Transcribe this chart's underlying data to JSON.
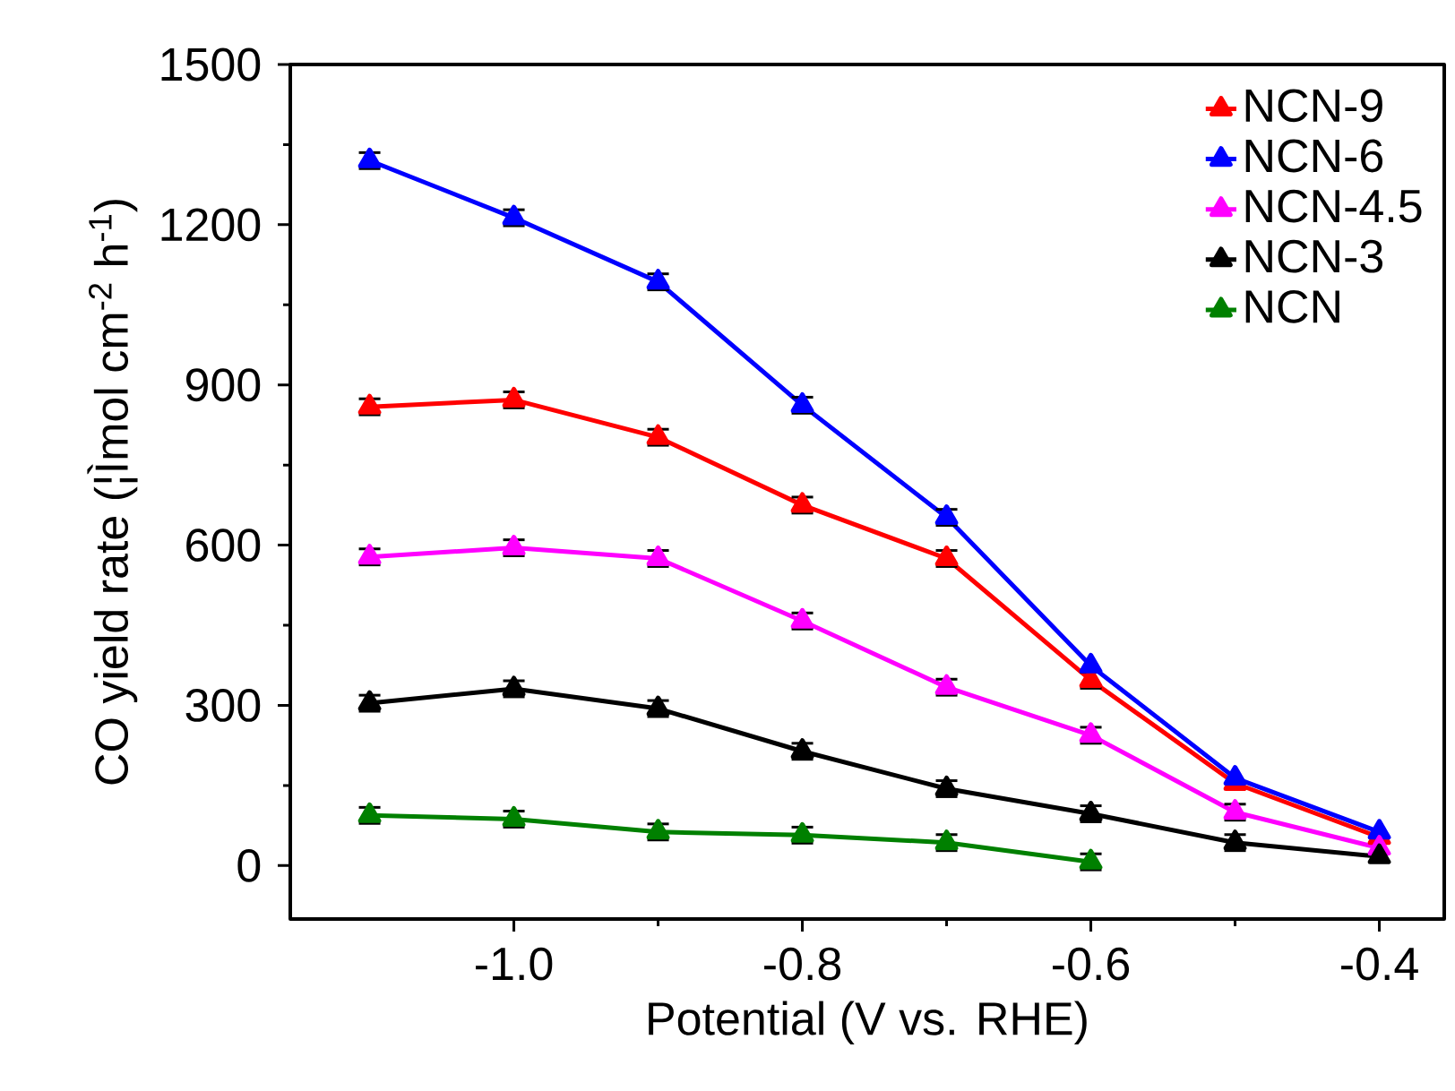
{
  "chart_data": {
    "type": "line",
    "xlabel": "Potential (V vs. RHE)",
    "ylabel": "CO yield rate (¦Ìmol cm$^{-2}$ h$^{-1}$)",
    "x": [
      -1.1,
      -1.0,
      -0.9,
      -0.8,
      -0.7,
      -0.6,
      -0.5,
      -0.4
    ],
    "series": [
      {
        "name": "NCN-9",
        "color": "#ff0000",
        "values": [
          859,
          872,
          802,
          675,
          575,
          347,
          154,
          53
        ],
        "errors": [
          15,
          15,
          15,
          15,
          15,
          15,
          null,
          null
        ]
      },
      {
        "name": "NCN-6",
        "color": "#0000ff",
        "values": [
          1320,
          1213,
          1093,
          862,
          652,
          374,
          164,
          63
        ],
        "errors": [
          15,
          15,
          15,
          15,
          15,
          null,
          null,
          null
        ]
      },
      {
        "name": "NCN-4.5",
        "color": "#ff00ff",
        "values": [
          578,
          595,
          575,
          458,
          334,
          244,
          100,
          33
        ],
        "errors": [
          15,
          15,
          15,
          15,
          15,
          15,
          15,
          null
        ]
      },
      {
        "name": "NCN-3",
        "color": "#000000",
        "values": [
          304,
          331,
          294,
          214,
          144,
          97,
          43,
          17
        ],
        "errors": [
          15,
          15,
          15,
          15,
          15,
          15,
          15,
          null
        ]
      },
      {
        "name": "NCN",
        "color": "#008000",
        "values": [
          94,
          87,
          63,
          57,
          43,
          7,
          null,
          null
        ],
        "errors": [
          15,
          15,
          15,
          15,
          15,
          15,
          null,
          null
        ]
      }
    ],
    "xlim": [
      -1.155,
      -0.355
    ],
    "ylim": [
      -100,
      1500
    ],
    "xticks": [
      {
        "value": -1.0,
        "label": "-1.0"
      },
      {
        "value": -0.8,
        "label": "-0.8"
      },
      {
        "value": -0.6,
        "label": "-0.6"
      },
      {
        "value": -0.4,
        "label": "-0.4"
      }
    ],
    "yticks": [
      0,
      300,
      600,
      900,
      1200,
      1500
    ],
    "grid": false,
    "legend": "top right",
    "marker": "triangle",
    "line_style": "solid"
  }
}
